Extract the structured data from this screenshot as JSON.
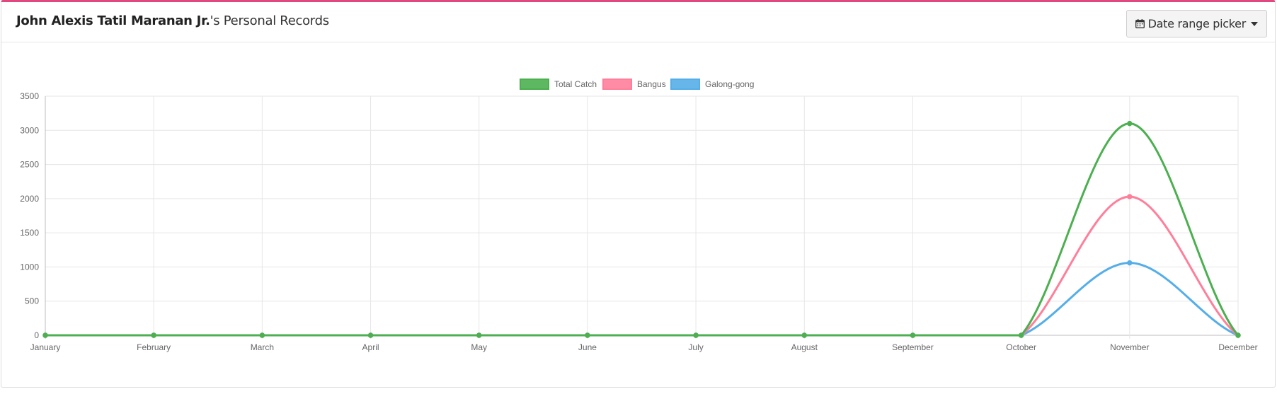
{
  "header": {
    "owner_name": "John Alexis Tatil Maranan Jr.",
    "title_suffix": "'s Personal Records",
    "date_picker_label": "Date range picker",
    "date_picker_icon": "calendar-icon"
  },
  "colors": {
    "accent": "#e0487f",
    "total_catch": "#4caf50",
    "bangus": "#ff7f9a",
    "galong_gong": "#55aee8"
  },
  "chart_data": {
    "type": "line",
    "categories": [
      "January",
      "February",
      "March",
      "April",
      "May",
      "June",
      "July",
      "August",
      "September",
      "October",
      "November",
      "December"
    ],
    "series": [
      {
        "name": "Total Catch",
        "color": "#4caf50",
        "values": [
          0,
          0,
          0,
          0,
          0,
          0,
          0,
          0,
          0,
          0,
          3100,
          0
        ]
      },
      {
        "name": "Bangus",
        "color": "#ff7f9a",
        "values": [
          0,
          0,
          0,
          0,
          0,
          0,
          0,
          0,
          0,
          0,
          2030,
          0
        ]
      },
      {
        "name": "Galong-gong",
        "color": "#55aee8",
        "values": [
          0,
          0,
          0,
          0,
          0,
          0,
          0,
          0,
          0,
          0,
          1060,
          0
        ]
      }
    ],
    "yticks": [
      0,
      500,
      1000,
      1500,
      2000,
      2500,
      3000,
      3500
    ],
    "ylim": [
      0,
      3500
    ],
    "grid": true,
    "legend": "top-center"
  }
}
